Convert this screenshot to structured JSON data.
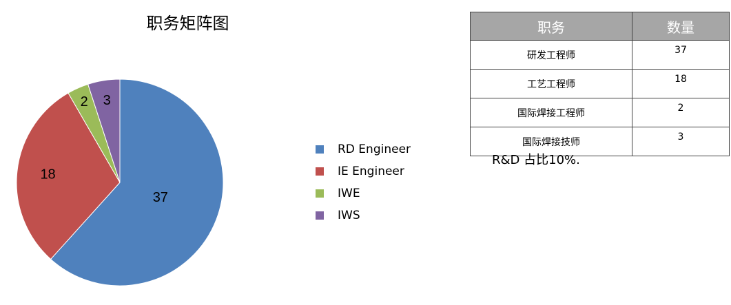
{
  "chart_data": {
    "type": "pie",
    "title": "职务矩阵图",
    "categories": [
      "RD Engineer",
      "IE Engineer",
      "IWE",
      "IWS"
    ],
    "values": [
      37,
      18,
      2,
      3
    ],
    "data_labels": [
      "37",
      "18",
      "2",
      "3"
    ],
    "colors": [
      "#4f81bd",
      "#c0504d",
      "#9bbb59",
      "#8064a2"
    ],
    "legend": "right"
  },
  "table": {
    "headers": [
      "职务",
      "数量"
    ],
    "rows": [
      [
        "研发工程师",
        "37"
      ],
      [
        "工艺工程师",
        "18"
      ],
      [
        "国际焊接工程师",
        "2"
      ],
      [
        "国际焊接技师",
        "3"
      ]
    ]
  },
  "note": "R&D 占比10%."
}
